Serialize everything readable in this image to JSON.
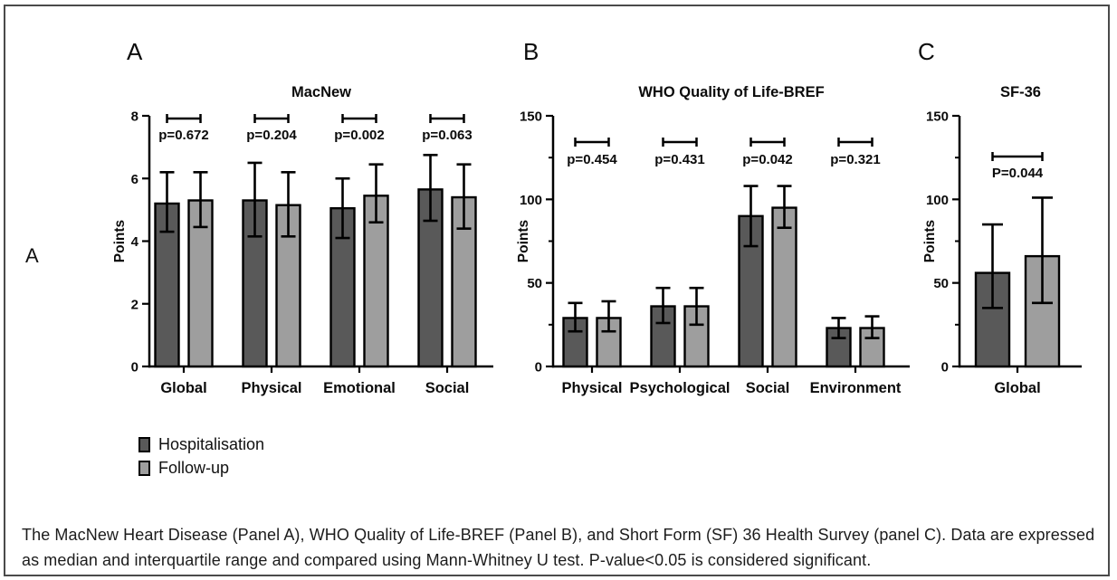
{
  "figure": {
    "outer_label": "A",
    "caption": "The MacNew Heart Disease (Panel A), WHO Quality of Life-BREF (Panel B), and Short Form (SF) 36 Health Survey (panel C). Data are expressed as median and interquartile range and compared using Mann-Whitney U test. P-value<0.05 is considered significant."
  },
  "colors": {
    "hospitalisation": "#595959",
    "followup": "#9e9e9e",
    "axis": "#000000",
    "frame": "#4a4a4a"
  },
  "legend": {
    "items": [
      {
        "label": "Hospitalisation",
        "color_key": "hospitalisation"
      },
      {
        "label": "Follow-up",
        "color_key": "followup"
      }
    ]
  },
  "chart_data": [
    {
      "type": "bar",
      "panel_letter": "A",
      "title": "MacNew",
      "ylabel": "Points",
      "ylim": [
        0,
        8
      ],
      "yticks": [
        0,
        2,
        4,
        6,
        8
      ],
      "yticks_minor": [],
      "categories": [
        "Global",
        "Physical",
        "Emotional",
        "Social"
      ],
      "p_labels": [
        "p=0.672",
        "p=0.204",
        "p=0.002",
        "p=0.063"
      ],
      "series": [
        {
          "name": "Hospitalisation",
          "values": [
            5.2,
            5.3,
            5.05,
            5.65
          ],
          "err_low": [
            4.3,
            4.15,
            4.1,
            4.65
          ],
          "err_high": [
            6.2,
            6.5,
            6.0,
            6.75
          ]
        },
        {
          "name": "Follow-up",
          "values": [
            5.3,
            5.15,
            5.45,
            5.4
          ],
          "err_low": [
            4.45,
            4.15,
            4.6,
            4.4
          ],
          "err_high": [
            6.2,
            6.2,
            6.45,
            6.45
          ]
        }
      ]
    },
    {
      "type": "bar",
      "panel_letter": "B",
      "title": "WHO Quality of Life-BREF",
      "ylabel": "Points",
      "ylim": [
        0,
        150
      ],
      "yticks": [
        0,
        50,
        100,
        150
      ],
      "yticks_minor": [
        25,
        75,
        125
      ],
      "categories": [
        "Physical",
        "Psychological",
        "Social",
        "Environment"
      ],
      "p_labels": [
        "p=0.454",
        "p=0.431",
        "p=0.042",
        "p=0.321"
      ],
      "series": [
        {
          "name": "Hospitalisation",
          "values": [
            29,
            36,
            90,
            23
          ],
          "err_low": [
            21,
            26,
            72,
            17
          ],
          "err_high": [
            38,
            47,
            108,
            29
          ]
        },
        {
          "name": "Follow-up",
          "values": [
            29,
            36,
            95,
            23
          ],
          "err_low": [
            21,
            25,
            83,
            17
          ],
          "err_high": [
            39,
            47,
            108,
            30
          ]
        }
      ]
    },
    {
      "type": "bar",
      "panel_letter": "C",
      "title": "SF-36",
      "ylabel": "Points",
      "ylim": [
        0,
        150
      ],
      "yticks": [
        0,
        50,
        100,
        150
      ],
      "yticks_minor": [
        25,
        75,
        125
      ],
      "categories": [
        "Global"
      ],
      "p_labels": [
        "P=0.044"
      ],
      "series": [
        {
          "name": "Hospitalisation",
          "values": [
            56
          ],
          "err_low": [
            35
          ],
          "err_high": [
            85
          ]
        },
        {
          "name": "Follow-up",
          "values": [
            66
          ],
          "err_low": [
            38
          ],
          "err_high": [
            101
          ]
        }
      ]
    }
  ]
}
